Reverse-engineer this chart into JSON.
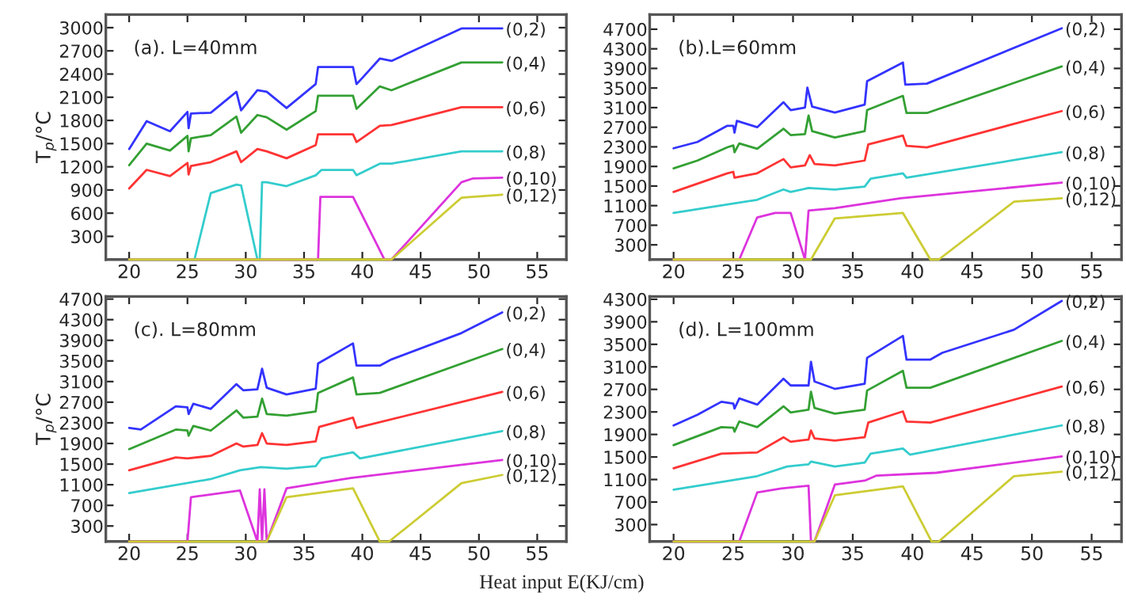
{
  "chart_data": [
    {
      "type": "line",
      "title": "(a). L=40mm",
      "ylabel": "T$_{p}$/°C",
      "xlim": [
        18,
        57.5
      ],
      "ylim": [
        0,
        3170
      ],
      "xticks": [
        20,
        25,
        30,
        35,
        40,
        45,
        50,
        55
      ],
      "yticks": [
        300,
        600,
        900,
        1200,
        1500,
        1800,
        2100,
        2400,
        2700,
        3000
      ],
      "grid": false,
      "legend": false,
      "marker": "none",
      "line_style": "solid",
      "series": [
        {
          "name": "(0,2)",
          "color": "#3333ff",
          "x": [
            20,
            21.5,
            23.5,
            25,
            25.1,
            25.3,
            27,
            29.2,
            29.6,
            31,
            31.8,
            33.5,
            36,
            36.2,
            39.2,
            39.5,
            40,
            41.5,
            42.5,
            48.5,
            52
          ],
          "values": [
            1430,
            1790,
            1660,
            1910,
            1700,
            1890,
            1900,
            2170,
            1930,
            2190,
            2170,
            1960,
            2270,
            2490,
            2490,
            2270,
            2350,
            2600,
            2570,
            2990,
            2990
          ]
        },
        {
          "name": "(0,4)",
          "color": "#33a033",
          "x": [
            20,
            21.5,
            23.5,
            25,
            25.1,
            25.3,
            27,
            29.2,
            29.6,
            31,
            31.8,
            33.5,
            36,
            36.2,
            39.2,
            39.5,
            41.5,
            42.5,
            48.5,
            52
          ],
          "values": [
            1220,
            1500,
            1410,
            1600,
            1400,
            1570,
            1610,
            1850,
            1640,
            1870,
            1840,
            1680,
            1920,
            2120,
            2120,
            1950,
            2240,
            2190,
            2550,
            2550
          ]
        },
        {
          "name": "(0,6)",
          "color": "#ff3333",
          "x": [
            20,
            21.5,
            23.5,
            25,
            25.1,
            25.3,
            27,
            29.2,
            29.6,
            31,
            31.8,
            33.5,
            36,
            36.2,
            39.2,
            39.5,
            41.5,
            42.5,
            48.5,
            52
          ],
          "values": [
            920,
            1160,
            1080,
            1250,
            1100,
            1210,
            1260,
            1400,
            1260,
            1430,
            1400,
            1310,
            1480,
            1620,
            1620,
            1520,
            1730,
            1740,
            1970,
            1970
          ]
        },
        {
          "name": "(0,8)",
          "color": "#33cccc",
          "x": [
            20,
            25.6,
            27,
            29.2,
            29.6,
            31,
            31.2,
            31.4,
            31.8,
            33.5,
            36,
            36.5,
            39.2,
            39.5,
            41.5,
            42.5,
            48.5,
            52
          ],
          "values": [
            0,
            0,
            860,
            970,
            960,
            0,
            0,
            1000,
            1000,
            950,
            1090,
            1160,
            1160,
            1090,
            1240,
            1240,
            1400,
            1400
          ]
        },
        {
          "name": "(0,10)",
          "color": "#dd33dd",
          "x": [
            20,
            36.2,
            36.4,
            39.2,
            41.9,
            42.5,
            48.5,
            49.5,
            52
          ],
          "values": [
            0,
            0,
            810,
            810,
            0,
            0,
            1000,
            1050,
            1060
          ]
        },
        {
          "name": "(0,12)",
          "color": "#cccc33",
          "x": [
            20,
            42.5,
            48.5,
            52
          ],
          "values": [
            0,
            0,
            800,
            840
          ]
        }
      ]
    },
    {
      "type": "line",
      "title": "(b).L=60mm",
      "xlim": [
        18,
        57.5
      ],
      "ylim": [
        0,
        5000
      ],
      "xticks": [
        20,
        25,
        30,
        35,
        40,
        45,
        50,
        55
      ],
      "yticks": [
        300,
        700,
        1100,
        1500,
        1900,
        2300,
        2700,
        3100,
        3500,
        3900,
        4300,
        4700
      ],
      "grid": false,
      "legend": false,
      "marker": "none",
      "line_style": "solid",
      "series": [
        {
          "name": "(0,2)",
          "color": "#3333ff",
          "x": [
            20,
            22,
            24.5,
            25,
            25.1,
            25.3,
            27,
            29.2,
            29.8,
            31,
            31.2,
            31.6,
            33.5,
            36,
            36.2,
            39.2,
            39.4,
            41.2,
            52.5
          ],
          "values": [
            2270,
            2400,
            2730,
            2730,
            2590,
            2830,
            2700,
            3210,
            3050,
            3100,
            3510,
            3120,
            3000,
            3160,
            3640,
            4020,
            3570,
            3590,
            4720
          ]
        },
        {
          "name": "(0,4)",
          "color": "#33a033",
          "x": [
            20,
            22,
            24.5,
            25,
            25.1,
            25.5,
            27,
            29.2,
            29.8,
            31,
            31.3,
            31.6,
            33.5,
            36,
            36.2,
            39.2,
            39.5,
            41.2,
            52.5
          ],
          "values": [
            1860,
            2020,
            2290,
            2330,
            2190,
            2370,
            2260,
            2670,
            2540,
            2560,
            2940,
            2620,
            2490,
            2620,
            3050,
            3340,
            2990,
            2990,
            3940
          ]
        },
        {
          "name": "(0,6)",
          "color": "#ff3333",
          "x": [
            20,
            24.5,
            25,
            25.1,
            27,
            29.2,
            29.8,
            31,
            31.4,
            31.8,
            33.5,
            36,
            36.3,
            39.2,
            39.5,
            41.2,
            52.5
          ],
          "values": [
            1380,
            1760,
            1790,
            1670,
            1760,
            2050,
            1880,
            1920,
            2130,
            1950,
            1920,
            2020,
            2350,
            2530,
            2320,
            2290,
            3030
          ]
        },
        {
          "name": "(0,8)",
          "color": "#33cccc",
          "x": [
            20,
            27,
            29.2,
            29.8,
            31.3,
            33.5,
            36,
            36.5,
            39.2,
            39.5,
            52.5
          ],
          "values": [
            950,
            1220,
            1430,
            1380,
            1460,
            1430,
            1490,
            1650,
            1760,
            1670,
            2190
          ]
        },
        {
          "name": "(0,10)",
          "color": "#dd33dd",
          "x": [
            20,
            25.5,
            27,
            28.5,
            29.8,
            31,
            31.3,
            33.5,
            39,
            52.5
          ],
          "values": [
            0,
            0,
            860,
            950,
            950,
            0,
            1000,
            1050,
            1250,
            1570
          ]
        },
        {
          "name": "(0,12)",
          "color": "#cccc33",
          "x": [
            20,
            31.5,
            33.5,
            39.2,
            41.5,
            42.2,
            48.5,
            52.5
          ],
          "values": [
            0,
            0,
            840,
            950,
            0,
            0,
            1180,
            1250
          ]
        }
      ]
    },
    {
      "type": "line",
      "title": "(c). L=80mm",
      "ylabel": "T$_{p}$/°C",
      "xlabel": "Heat input E(KJ/cm)",
      "xlim": [
        18,
        57.5
      ],
      "ylim": [
        0,
        4750
      ],
      "xticks": [
        20,
        25,
        30,
        35,
        40,
        45,
        50,
        55
      ],
      "yticks": [
        300,
        700,
        1100,
        1500,
        1900,
        2300,
        2700,
        3100,
        3500,
        3900,
        4300,
        4700
      ],
      "grid": false,
      "legend": false,
      "marker": "none",
      "line_style": "solid",
      "series": [
        {
          "name": "(0,2)",
          "color": "#3333ff",
          "x": [
            20,
            21,
            24,
            25,
            25.1,
            25.5,
            27,
            29.2,
            29.8,
            31,
            31.4,
            31.8,
            33.5,
            36,
            36.2,
            39.2,
            39.5,
            41.5,
            42.5,
            48.5,
            52
          ],
          "values": [
            2200,
            2170,
            2620,
            2600,
            2470,
            2670,
            2570,
            3050,
            2930,
            2950,
            3350,
            2980,
            2850,
            2960,
            3450,
            3840,
            3410,
            3410,
            3530,
            4040,
            4440
          ]
        },
        {
          "name": "(0,4)",
          "color": "#33a033",
          "x": [
            20,
            24,
            25,
            25.1,
            25.5,
            27,
            29.2,
            29.8,
            31,
            31.4,
            31.8,
            33.5,
            36,
            36.2,
            39.2,
            39.5,
            41.5,
            52
          ],
          "values": [
            1790,
            2170,
            2150,
            2050,
            2240,
            2150,
            2540,
            2400,
            2420,
            2770,
            2470,
            2440,
            2520,
            2880,
            3180,
            2850,
            2880,
            3730
          ]
        },
        {
          "name": "(0,6)",
          "color": "#ff3333",
          "x": [
            20,
            24,
            25,
            27,
            29.2,
            29.8,
            31,
            31.4,
            31.8,
            33.5,
            36,
            36.3,
            39.2,
            39.5,
            52
          ],
          "values": [
            1380,
            1630,
            1610,
            1660,
            1900,
            1840,
            1870,
            2100,
            1900,
            1870,
            1940,
            2220,
            2400,
            2200,
            2900
          ]
        },
        {
          "name": "(0,8)",
          "color": "#33cccc",
          "x": [
            20,
            27,
            29.5,
            31.3,
            33.5,
            36,
            36.5,
            39.2,
            39.8,
            52
          ],
          "values": [
            940,
            1210,
            1380,
            1440,
            1410,
            1460,
            1610,
            1730,
            1610,
            2140
          ]
        },
        {
          "name": "(0,10)",
          "color": "#dd33dd",
          "x": [
            20,
            25,
            25.3,
            26,
            29.5,
            31,
            31.2,
            31.4,
            31.6,
            31.8,
            33.5,
            39,
            52
          ],
          "values": [
            0,
            0,
            860,
            880,
            990,
            0,
            1010,
            0,
            1010,
            0,
            1030,
            1230,
            1580
          ]
        },
        {
          "name": "(0,12)",
          "color": "#cccc33",
          "x": [
            20,
            31.8,
            33.5,
            39.2,
            41.5,
            42.3,
            48.5,
            52
          ],
          "values": [
            0,
            0,
            860,
            1030,
            0,
            0,
            1130,
            1290
          ]
        }
      ]
    },
    {
      "type": "line",
      "title": "(d). L=100mm",
      "xlim": [
        18,
        57.5
      ],
      "ylim": [
        0,
        4350
      ],
      "xticks": [
        20,
        25,
        30,
        35,
        40,
        45,
        50,
        55
      ],
      "yticks": [
        300,
        700,
        1100,
        1500,
        1900,
        2300,
        2700,
        3100,
        3500,
        3900,
        4300
      ],
      "grid": false,
      "legend": false,
      "marker": "none",
      "line_style": "solid",
      "series": [
        {
          "name": "(0,2)",
          "color": "#3333ff",
          "x": [
            20,
            22,
            24,
            25,
            25.1,
            25.5,
            27,
            29.2,
            29.8,
            31.3,
            31.5,
            31.8,
            33.5,
            36,
            36.2,
            39.2,
            39.5,
            41.5,
            42.5,
            48.5,
            52.5
          ],
          "values": [
            2060,
            2250,
            2480,
            2450,
            2360,
            2540,
            2430,
            2890,
            2770,
            2770,
            3190,
            2840,
            2710,
            2800,
            3260,
            3650,
            3230,
            3230,
            3350,
            3760,
            4270
          ]
        },
        {
          "name": "(0,4)",
          "color": "#33a033",
          "x": [
            20,
            24,
            25,
            25.1,
            25.5,
            27,
            29.2,
            29.8,
            31.3,
            31.5,
            31.8,
            33.5,
            36,
            36.2,
            39.2,
            39.5,
            41.5,
            52.5
          ],
          "values": [
            1710,
            2030,
            2020,
            1950,
            2130,
            2030,
            2400,
            2290,
            2340,
            2660,
            2370,
            2270,
            2340,
            2680,
            3030,
            2730,
            2730,
            3560
          ]
        },
        {
          "name": "(0,6)",
          "color": "#ff3333",
          "x": [
            20,
            24,
            27,
            29.2,
            29.8,
            31.3,
            31.5,
            31.8,
            33.5,
            36,
            36.3,
            39.2,
            39.5,
            41.5,
            52.5
          ],
          "values": [
            1300,
            1560,
            1580,
            1850,
            1770,
            1810,
            1970,
            1830,
            1790,
            1850,
            2110,
            2310,
            2130,
            2110,
            2750
          ]
        },
        {
          "name": "(0,8)",
          "color": "#33cccc",
          "x": [
            20,
            27,
            29.5,
            31.3,
            31.5,
            33.5,
            36,
            36.5,
            39.2,
            39.8,
            52.5
          ],
          "values": [
            920,
            1160,
            1330,
            1370,
            1420,
            1330,
            1400,
            1560,
            1650,
            1540,
            2060
          ]
        },
        {
          "name": "(0,10)",
          "color": "#dd33dd",
          "x": [
            20,
            25.5,
            27,
            29,
            31.3,
            31.5,
            31.8,
            33.5,
            36,
            37,
            42,
            52.5
          ],
          "values": [
            0,
            0,
            870,
            940,
            990,
            0,
            0,
            1010,
            1080,
            1170,
            1220,
            1510
          ]
        },
        {
          "name": "(0,12)",
          "color": "#cccc33",
          "x": [
            20,
            31.8,
            33.5,
            39.2,
            41.6,
            42.2,
            48.5,
            52.5
          ],
          "values": [
            0,
            0,
            820,
            980,
            0,
            0,
            1160,
            1240
          ]
        }
      ]
    }
  ]
}
